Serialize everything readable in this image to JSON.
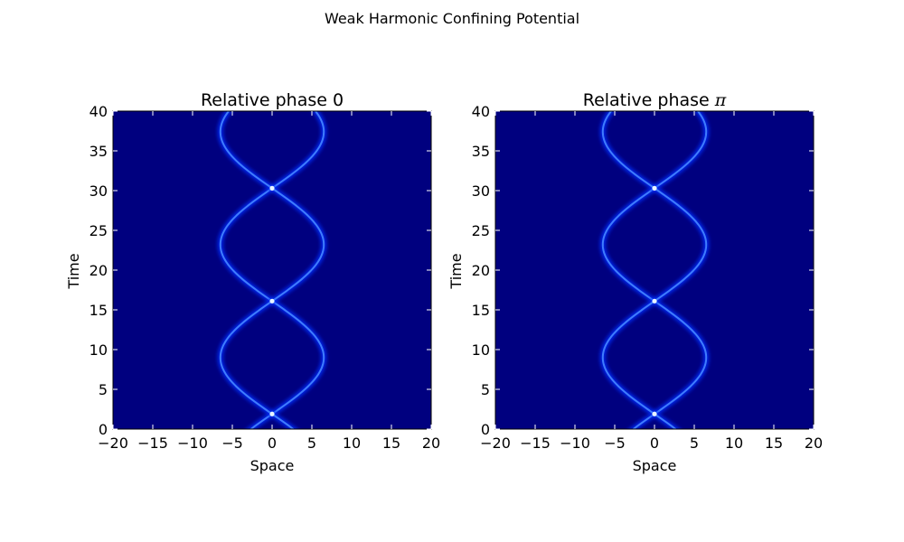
{
  "figure": {
    "suptitle": "Weak Harmonic Confining Potential",
    "colors": {
      "background": "#00007f",
      "trajectory_glow": "#0030ff",
      "trajectory_core": "#3f7cff",
      "collision": "#e8f4ff"
    }
  },
  "chart_data": [
    {
      "type": "heatmap",
      "title_text": "Relative phase 0",
      "title_symbol": "",
      "xlabel": "Space",
      "ylabel": "Time",
      "xlim": [
        -20,
        20
      ],
      "ylim": [
        0,
        40
      ],
      "xticks": [
        -20,
        -15,
        -10,
        -5,
        0,
        5,
        10,
        15,
        20
      ],
      "yticks": [
        0,
        5,
        10,
        15,
        20,
        25,
        30,
        35,
        40
      ],
      "colormap": "jet",
      "soliton_amplitude": 6.5,
      "oscillation_period": 28.4,
      "first_collision_time": 1.9,
      "collision_times": [
        1.9,
        16.1,
        30.3
      ]
    },
    {
      "type": "heatmap",
      "title_text": "Relative phase ",
      "title_symbol": "π",
      "xlabel": "Space",
      "ylabel": "Time",
      "xlim": [
        -20,
        20
      ],
      "ylim": [
        0,
        40
      ],
      "xticks": [
        -20,
        -15,
        -10,
        -5,
        0,
        5,
        10,
        15,
        20
      ],
      "yticks": [
        0,
        5,
        10,
        15,
        20,
        25,
        30,
        35,
        40
      ],
      "colormap": "jet",
      "soliton_amplitude": 6.5,
      "oscillation_period": 28.4,
      "first_collision_time": 1.9,
      "collision_times": [
        1.9,
        16.1,
        30.3
      ]
    }
  ]
}
